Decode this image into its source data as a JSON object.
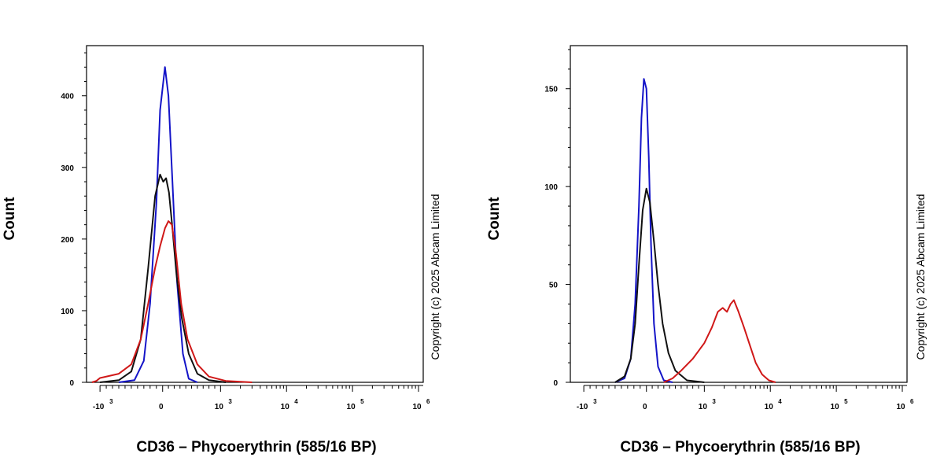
{
  "chart_data": [
    {
      "type": "line",
      "title": "",
      "xlabel": "CD36 – Phycoerythrin (585/16 BP)",
      "ylabel": "Count",
      "x_scale": "biexponential",
      "x_ticks": [
        {
          "value": -1000,
          "label": "-10",
          "exp": "3"
        },
        {
          "value": 0,
          "label": "0",
          "exp": ""
        },
        {
          "value": 1000,
          "label": "10",
          "exp": "3"
        },
        {
          "value": 10000,
          "label": "10",
          "exp": "4"
        },
        {
          "value": 100000,
          "label": "10",
          "exp": "5"
        },
        {
          "value": 1000000,
          "label": "10",
          "exp": "6"
        }
      ],
      "ylim": [
        0,
        470
      ],
      "y_ticks": [
        0,
        100,
        200,
        300,
        400
      ],
      "copyright": "Copyright (c) 2025 Abcam Limited",
      "series": [
        {
          "color": "#1414c8",
          "points": [
            [
              -700,
              0
            ],
            [
              -450,
              3
            ],
            [
              -300,
              30
            ],
            [
              -200,
              110
            ],
            [
              -100,
              250
            ],
            [
              -40,
              380
            ],
            [
              40,
              440
            ],
            [
              100,
              400
            ],
            [
              170,
              280
            ],
            [
              250,
              140
            ],
            [
              350,
              40
            ],
            [
              450,
              5
            ],
            [
              600,
              0
            ]
          ]
        },
        {
          "color": "#111111",
          "points": [
            [
              -1000,
              0
            ],
            [
              -700,
              3
            ],
            [
              -500,
              15
            ],
            [
              -350,
              60
            ],
            [
              -230,
              160
            ],
            [
              -120,
              260
            ],
            [
              -40,
              290
            ],
            [
              10,
              280
            ],
            [
              60,
              285
            ],
            [
              110,
              265
            ],
            [
              170,
              215
            ],
            [
              240,
              150
            ],
            [
              330,
              90
            ],
            [
              450,
              40
            ],
            [
              600,
              12
            ],
            [
              800,
              3
            ],
            [
              1200,
              0
            ]
          ]
        },
        {
          "color": "#d01818",
          "points": [
            [
              -2500,
              0
            ],
            [
              -1500,
              2
            ],
            [
              -1000,
              6
            ],
            [
              -700,
              12
            ],
            [
              -500,
              25
            ],
            [
              -350,
              60
            ],
            [
              -230,
              110
            ],
            [
              -120,
              160
            ],
            [
              -40,
              190
            ],
            [
              40,
              215
            ],
            [
              100,
              225
            ],
            [
              160,
              220
            ],
            [
              230,
              180
            ],
            [
              320,
              110
            ],
            [
              430,
              60
            ],
            [
              600,
              25
            ],
            [
              800,
              8
            ],
            [
              1200,
              2
            ],
            [
              3000,
              0
            ]
          ]
        }
      ]
    },
    {
      "type": "line",
      "title": "",
      "xlabel": "CD36 – Phycoerythrin (585/16 BP)",
      "ylabel": "Count",
      "x_scale": "biexponential",
      "x_ticks": [
        {
          "value": -1000,
          "label": "-10",
          "exp": "3"
        },
        {
          "value": 0,
          "label": "0",
          "exp": ""
        },
        {
          "value": 1000,
          "label": "10",
          "exp": "3"
        },
        {
          "value": 10000,
          "label": "10",
          "exp": "4"
        },
        {
          "value": 100000,
          "label": "10",
          "exp": "5"
        },
        {
          "value": 1000000,
          "label": "10",
          "exp": "6"
        }
      ],
      "ylim": [
        0,
        172
      ],
      "y_ticks": [
        0,
        50,
        100,
        150
      ],
      "copyright": "Copyright (c) 2025 Abcam Limited",
      "series": [
        {
          "color": "#1414c8",
          "points": [
            [
              -500,
              0
            ],
            [
              -350,
              2
            ],
            [
              -250,
              12
            ],
            [
              -180,
              40
            ],
            [
              -120,
              90
            ],
            [
              -80,
              135
            ],
            [
              -40,
              155
            ],
            [
              0,
              150
            ],
            [
              40,
              115
            ],
            [
              80,
              70
            ],
            [
              130,
              30
            ],
            [
              200,
              8
            ],
            [
              300,
              1
            ],
            [
              450,
              0
            ]
          ]
        },
        {
          "color": "#111111",
          "points": [
            [
              -500,
              0
            ],
            [
              -350,
              3
            ],
            [
              -250,
              12
            ],
            [
              -180,
              30
            ],
            [
              -120,
              60
            ],
            [
              -60,
              88
            ],
            [
              0,
              99
            ],
            [
              60,
              92
            ],
            [
              130,
              72
            ],
            [
              200,
              50
            ],
            [
              280,
              30
            ],
            [
              380,
              15
            ],
            [
              500,
              6
            ],
            [
              700,
              1
            ],
            [
              1000,
              0
            ]
          ]
        },
        {
          "color": "#d01818",
          "points": [
            [
              300,
              0
            ],
            [
              450,
              2
            ],
            [
              600,
              6
            ],
            [
              800,
              12
            ],
            [
              1000,
              20
            ],
            [
              1300,
              28
            ],
            [
              1600,
              36
            ],
            [
              1900,
              38
            ],
            [
              2200,
              36
            ],
            [
              2500,
              40
            ],
            [
              2800,
              42
            ],
            [
              3300,
              36
            ],
            [
              4000,
              28
            ],
            [
              5000,
              18
            ],
            [
              6000,
              10
            ],
            [
              7500,
              4
            ],
            [
              9500,
              1
            ],
            [
              12000,
              0
            ]
          ]
        }
      ]
    }
  ]
}
